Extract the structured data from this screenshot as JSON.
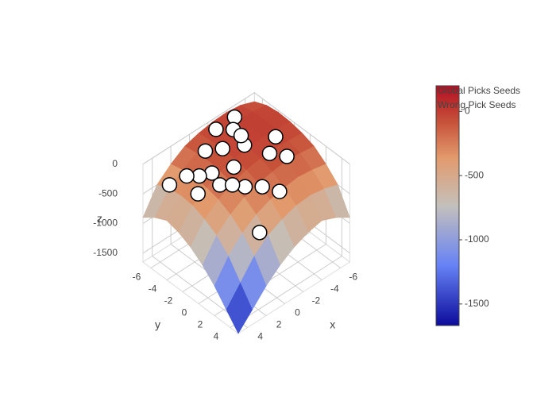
{
  "chart_data": {
    "type": "surface3d",
    "x": [
      -7,
      -5.5,
      -4,
      -2.5,
      -1,
      0.5,
      2,
      3.5,
      5
    ],
    "y": [
      -7,
      -5.5,
      -4,
      -2.5,
      -1,
      0.5,
      2,
      3.5,
      5
    ],
    "z": [
      [
        -150,
        -60,
        -30,
        -40,
        -80,
        -150,
        -300,
        -500,
        -900
      ],
      [
        -60,
        -20,
        -10,
        -20,
        -60,
        -120,
        -250,
        -420,
        -750
      ],
      [
        -30,
        -10,
        0,
        -10,
        -40,
        -100,
        -220,
        -380,
        -650
      ],
      [
        -40,
        -20,
        -10,
        -30,
        -60,
        -130,
        -250,
        -400,
        -700
      ],
      [
        -80,
        -60,
        -40,
        -60,
        -100,
        -180,
        -300,
        -480,
        -800
      ],
      [
        -150,
        -120,
        -100,
        -130,
        -180,
        -260,
        -400,
        -600,
        -950
      ],
      [
        -300,
        -250,
        -220,
        -250,
        -300,
        -400,
        -560,
        -800,
        -1150
      ],
      [
        -500,
        -420,
        -380,
        -400,
        -480,
        -600,
        -800,
        -1100,
        -1400
      ],
      [
        -900,
        -750,
        -650,
        -700,
        -800,
        -950,
        -1150,
        -1400,
        -1650
      ]
    ],
    "colorscale": [
      [
        0,
        "#0c0c9c"
      ],
      [
        0.25,
        "#6682f5"
      ],
      [
        0.5,
        "#c4c0bb"
      ],
      [
        0.7,
        "#e29a6c"
      ],
      [
        0.85,
        "#c6513a"
      ],
      [
        1,
        "#b40e22"
      ]
    ],
    "clim": [
      -1668,
      200
    ],
    "colorbar_ticks": [
      0,
      -500,
      -1000,
      -1500
    ],
    "series": [
      {
        "name": "Global Picks Seeds",
        "x": [
          -4,
          -3,
          -2,
          -1,
          0,
          1,
          -5,
          -3.5,
          -2.5,
          -0.5,
          1.5,
          -4.5
        ],
        "y": [
          -6,
          -5,
          -6,
          -4,
          -5,
          -3,
          -2,
          -1,
          -3,
          -2,
          -4,
          0
        ],
        "z": [
          -10,
          -20,
          -15,
          -40,
          -80,
          -150,
          -40,
          -70,
          -30,
          -100,
          -250,
          -120
        ]
      },
      {
        "name": "Wrong Pick Seeds",
        "x": [
          2,
          1,
          0,
          -1,
          -2,
          0.5,
          2.5,
          3,
          1,
          -3
        ],
        "y": [
          -5,
          -2,
          0,
          1,
          2,
          -1,
          -3,
          -6,
          3,
          -4
        ],
        "z": [
          -300,
          -250,
          -180,
          -180,
          -260,
          -200,
          -350,
          -450,
          -550,
          -20
        ]
      }
    ],
    "xlim": [
      -7,
      5
    ],
    "ylim": [
      -7,
      5
    ],
    "zlim": [
      -1650,
      0
    ],
    "xticks": [
      -6,
      -4,
      -2,
      0,
      2,
      4
    ],
    "yticks": [
      -6,
      -4,
      -2,
      0,
      2,
      4
    ],
    "zticks": [
      0,
      -500,
      -1000,
      -1500
    ],
    "xlabel": "x",
    "ylabel": "y",
    "zlabel": "z"
  }
}
